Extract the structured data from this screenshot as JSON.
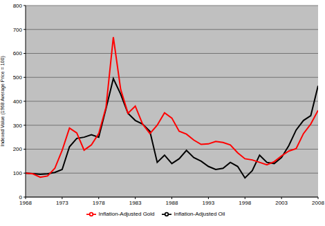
{
  "chart_data": {
    "type": "line",
    "y_label": "Indexed Value (1968 Average Price = 100)",
    "x": [
      1968,
      1969,
      1970,
      1971,
      1972,
      1973,
      1974,
      1975,
      1976,
      1977,
      1978,
      1979,
      1980,
      1981,
      1982,
      1983,
      1984,
      1985,
      1986,
      1987,
      1988,
      1989,
      1990,
      1991,
      1992,
      1993,
      1994,
      1995,
      1996,
      1997,
      1998,
      1999,
      2000,
      2001,
      2002,
      2003,
      2004,
      2005,
      2006,
      2007,
      2008
    ],
    "series": [
      {
        "name": "Inflation-Adjusted Oil",
        "color": "#000000",
        "values": [
          100,
          98,
          95,
          97,
          103,
          115,
          210,
          245,
          250,
          260,
          250,
          370,
          495,
          430,
          350,
          320,
          305,
          275,
          145,
          175,
          140,
          160,
          195,
          165,
          150,
          128,
          115,
          120,
          145,
          128,
          80,
          110,
          175,
          145,
          140,
          165,
          215,
          280,
          320,
          340,
          465
        ]
      },
      {
        "name": "Inflation-Adjusted Gold",
        "color": "#ff0000",
        "values": [
          100,
          97,
          83,
          88,
          120,
          195,
          288,
          268,
          196,
          218,
          265,
          375,
          668,
          450,
          350,
          380,
          305,
          265,
          300,
          352,
          330,
          275,
          263,
          238,
          220,
          222,
          232,
          228,
          218,
          185,
          160,
          155,
          145,
          135,
          148,
          172,
          192,
          202,
          265,
          305,
          362
        ]
      }
    ],
    "xlim": [
      1968,
      2008
    ],
    "xticks": [
      1968,
      1973,
      1978,
      1983,
      1988,
      1993,
      1998,
      2003,
      2008
    ],
    "ylim": [
      0,
      800
    ],
    "yticks": [
      0,
      100,
      200,
      300,
      400,
      500,
      600,
      700,
      800
    ],
    "grid": true,
    "legend": "bottom"
  }
}
